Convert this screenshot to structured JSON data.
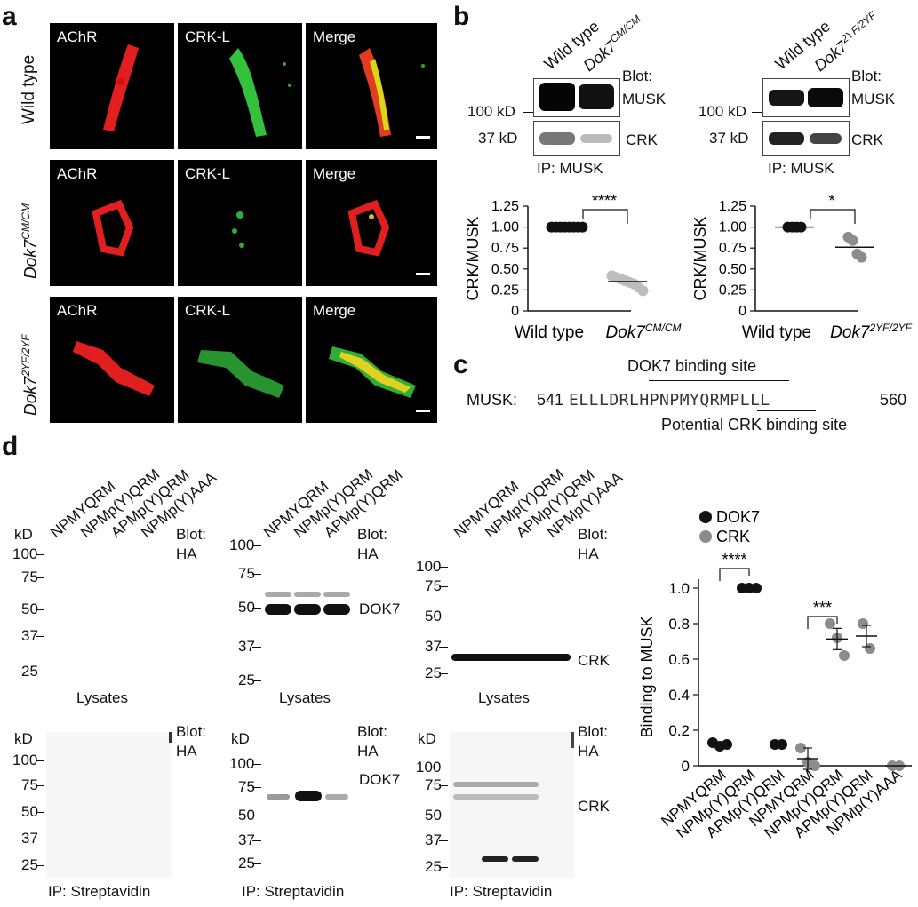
{
  "panel_a": {
    "letter": "a",
    "rows": [
      {
        "label": "Wild type",
        "label_style": "normal"
      },
      {
        "label": "Dok7",
        "sup": "CM/CM",
        "label_style": "italic"
      },
      {
        "label": "Dok7",
        "sup": "2YF/2YF",
        "label_style": "italic"
      }
    ],
    "columns": [
      "AChR",
      "CRK-L",
      "Merge"
    ]
  },
  "panel_b": {
    "letter": "b",
    "left_blot": {
      "lanes": [
        {
          "text": "Wild type"
        },
        {
          "text": "Dok7",
          "sup": "CM/CM"
        }
      ],
      "blot_label": "Blot:",
      "musk_label": "MUSK",
      "crk_label": "CRK",
      "mw_100": "100 kD",
      "mw_37": "37 kD",
      "ip_label": "IP: MUSK"
    },
    "right_blot": {
      "lanes": [
        {
          "text": "Wild type"
        },
        {
          "text": "Dok7",
          "sup": "2YF/2YF"
        }
      ],
      "blot_label": "Blot:",
      "musk_label": "MUSK",
      "crk_label": "CRK",
      "mw_100": "100 kD",
      "mw_37": "37 kD",
      "ip_label": "IP: MUSK"
    }
  },
  "panel_c": {
    "letter": "c",
    "prefix": "MUSK:",
    "start": "541",
    "sequence": "ELLLDRLHPNPMYQRMPLLL",
    "end": "560",
    "dok7_site": "DOK7 binding site",
    "crk_site": "Potential CRK binding site"
  },
  "panel_d": {
    "letter": "d",
    "blot_label": "Blot:",
    "ha_label": "HA",
    "kd_label": "kD",
    "dok7_label": "DOK7",
    "crk_label": "CRK",
    "lysates": "Lysates",
    "ip": "IP: Streptavidin",
    "lanes_4": [
      "NPMYQRM",
      "NPMp(Y)QRM",
      "APMp(Y)QRM",
      "NPMp(Y)AAA"
    ],
    "lanes_3": [
      "NPMYQRM",
      "NPMp(Y)QRM",
      "APMp(Y)QRM"
    ],
    "mw_top": [
      "100",
      "75",
      "50",
      "37",
      "25"
    ],
    "mw_bottom": [
      "100",
      "75",
      "50",
      "37",
      "25"
    ]
  },
  "chart_data": [
    {
      "type": "scatter",
      "panel": "b-left",
      "ylabel": "CRK/MUSK",
      "categories": [
        "Wild type",
        "Dok7 CM/CM"
      ],
      "ylim": [
        0,
        1.25
      ],
      "yticks": [
        "0",
        "0.25",
        "0.50",
        "0.75",
        "1.00",
        "1.25"
      ],
      "significance": "****",
      "series": [
        {
          "category": "Wild type",
          "color": "#111111",
          "values": [
            1.0,
            1.0,
            1.0,
            1.0,
            1.0,
            1.0,
            1.0,
            1.0
          ],
          "mean": 1.0
        },
        {
          "category": "Dok7 CM/CM",
          "color": "#bdbdbd",
          "values": [
            0.42,
            0.4,
            0.38,
            0.36,
            0.34,
            0.32,
            0.28,
            0.24
          ],
          "mean": 0.35
        }
      ]
    },
    {
      "type": "scatter",
      "panel": "b-right",
      "ylabel": "CRK/MUSK",
      "categories": [
        "Wild type",
        "Dok7 2YF/2YF"
      ],
      "ylim": [
        0,
        1.25
      ],
      "yticks": [
        "0",
        "0.25",
        "0.50",
        "0.75",
        "1.00",
        "1.25"
      ],
      "significance": "*",
      "series": [
        {
          "category": "Wild type",
          "color": "#111111",
          "values": [
            1.0,
            1.0,
            1.0,
            1.0
          ],
          "mean": 1.0
        },
        {
          "category": "Dok7 2YF/2YF",
          "color": "#8c8c8c",
          "values": [
            0.88,
            0.84,
            0.68,
            0.64
          ],
          "mean": 0.76
        }
      ]
    },
    {
      "type": "scatter",
      "panel": "d",
      "ylabel": "Binding to MUSK",
      "ylim": [
        0,
        1.0
      ],
      "yticks": [
        "0",
        "0.2",
        "0.4",
        "0.6",
        "0.8",
        "1.0"
      ],
      "categories": [
        "NPMYQRM",
        "NPMp(Y)QRM",
        "APMp(Y)QRM",
        "NPMYQRM",
        "NPMp(Y)QRM",
        "APMp(Y)QRM",
        "NPMp(Y)AAA"
      ],
      "legend": [
        {
          "name": "DOK7",
          "color": "#111111"
        },
        {
          "name": "CRK",
          "color": "#8c8c8c"
        }
      ],
      "series": [
        {
          "name": "DOK7",
          "color": "#111111",
          "groups": [
            {
              "x": 0,
              "values": [
                0.13,
                0.11,
                0.12
              ]
            },
            {
              "x": 1,
              "values": [
                1.0,
                1.0,
                1.0
              ]
            },
            {
              "x": 2,
              "values": [
                0.12,
                0.12
              ]
            }
          ]
        },
        {
          "name": "CRK",
          "color": "#8c8c8c",
          "groups": [
            {
              "x": 3,
              "values": [
                0.1,
                0.02,
                0.0
              ]
            },
            {
              "x": 4,
              "values": [
                0.8,
                0.72,
                0.62
              ]
            },
            {
              "x": 5,
              "values": [
                0.8,
                0.66
              ]
            },
            {
              "x": 6,
              "values": [
                0.0,
                0.0
              ]
            }
          ]
        }
      ],
      "significance": [
        {
          "from": 0,
          "to": 1,
          "label": "****"
        },
        {
          "from": 3,
          "to": 4,
          "label": "***"
        }
      ]
    }
  ]
}
